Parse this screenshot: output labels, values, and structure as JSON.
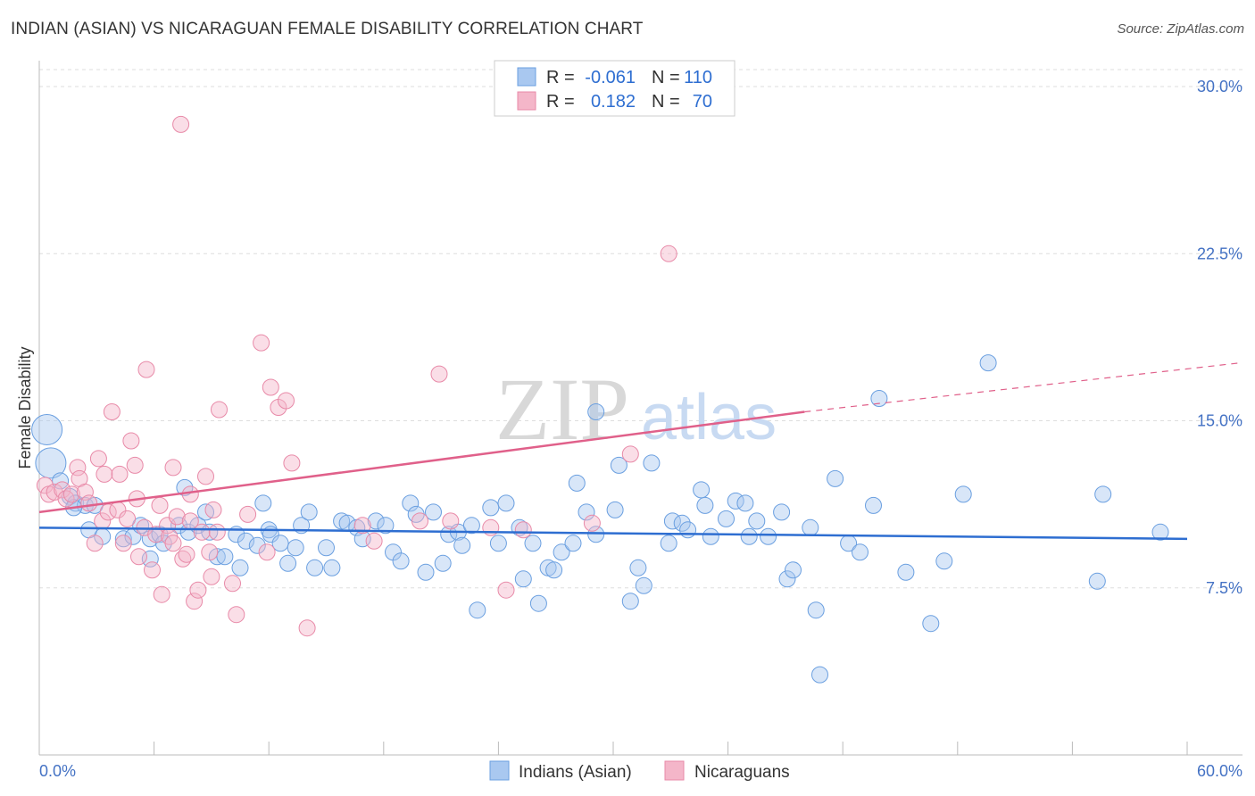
{
  "chart_data": {
    "type": "scatter",
    "title": "INDIAN (ASIAN) VS NICARAGUAN FEMALE DISABILITY CORRELATION CHART",
    "source": "Source: ZipAtlas.com",
    "xlabel": "",
    "ylabel": "Female Disability",
    "xlim": [
      0,
      60
    ],
    "ylim": [
      0,
      31.5
    ],
    "x_tick_labels": [
      "0.0%",
      "60.0%"
    ],
    "y_ticks": [
      7.5,
      15.0,
      22.5,
      30.0
    ],
    "y_tick_labels": [
      "7.5%",
      "15.0%",
      "22.5%",
      "30.0%"
    ],
    "grid": true,
    "watermark": {
      "zip": "ZIP",
      "atlas": "atlas"
    },
    "legend": {
      "r_label": "R =",
      "n_label": "N =",
      "entries": [
        {
          "r": "-0.061",
          "n": "110"
        },
        {
          "r": "0.182",
          "n": "70"
        }
      ]
    },
    "series": [
      {
        "name": "Indians (Asian)",
        "color": "#6a9fe0",
        "fill": "#a9c8f0",
        "line_color": "#2e6ed1",
        "trend": {
          "x0": 0,
          "y0": 10.2,
          "x1": 60,
          "y1": 9.7
        },
        "points": [
          [
            0.4,
            14.6,
            1
          ],
          [
            0.6,
            13.1,
            1
          ],
          [
            1.1,
            12.3,
            0
          ],
          [
            1.6,
            11.6,
            0
          ],
          [
            1.9,
            11.3,
            0
          ],
          [
            2.4,
            11.2,
            0
          ],
          [
            2.9,
            11.2,
            0
          ],
          [
            1.8,
            11.1,
            0
          ],
          [
            2.6,
            10.1,
            0
          ],
          [
            3.3,
            9.8,
            0
          ],
          [
            4.4,
            9.7,
            0
          ],
          [
            4.9,
            9.8,
            0
          ],
          [
            5.3,
            10.3,
            0
          ],
          [
            5.8,
            9.7,
            0
          ],
          [
            5.8,
            8.8,
            0
          ],
          [
            6.3,
            9.9,
            0
          ],
          [
            6.5,
            9.5,
            0
          ],
          [
            7.3,
            10.3,
            0
          ],
          [
            7.6,
            12.0,
            0
          ],
          [
            7.8,
            10.0,
            0
          ],
          [
            8.3,
            10.3,
            0
          ],
          [
            8.7,
            10.9,
            0
          ],
          [
            8.9,
            10.0,
            0
          ],
          [
            9.3,
            8.9,
            0
          ],
          [
            9.7,
            8.9,
            0
          ],
          [
            10.3,
            9.9,
            0
          ],
          [
            10.5,
            8.4,
            0
          ],
          [
            10.8,
            9.6,
            0
          ],
          [
            11.4,
            9.4,
            0
          ],
          [
            11.7,
            11.3,
            0
          ],
          [
            12.0,
            10.1,
            0
          ],
          [
            12.1,
            9.9,
            0
          ],
          [
            12.6,
            9.5,
            0
          ],
          [
            13.0,
            8.6,
            0
          ],
          [
            13.4,
            9.3,
            0
          ],
          [
            13.7,
            10.3,
            0
          ],
          [
            14.1,
            10.9,
            0
          ],
          [
            14.4,
            8.4,
            0
          ],
          [
            15.0,
            9.3,
            0
          ],
          [
            15.3,
            8.4,
            0
          ],
          [
            15.8,
            10.5,
            0
          ],
          [
            16.1,
            10.4,
            0
          ],
          [
            16.6,
            10.2,
            0
          ],
          [
            16.9,
            9.7,
            0
          ],
          [
            17.6,
            10.5,
            0
          ],
          [
            18.1,
            10.3,
            0
          ],
          [
            18.5,
            9.1,
            0
          ],
          [
            18.9,
            8.7,
            0
          ],
          [
            19.4,
            11.3,
            0
          ],
          [
            19.7,
            10.8,
            0
          ],
          [
            20.2,
            8.2,
            0
          ],
          [
            20.6,
            10.9,
            0
          ],
          [
            21.1,
            8.6,
            0
          ],
          [
            21.4,
            9.9,
            0
          ],
          [
            21.9,
            10.0,
            0
          ],
          [
            22.1,
            9.4,
            0
          ],
          [
            22.6,
            10.3,
            0
          ],
          [
            22.9,
            6.5,
            0
          ],
          [
            23.6,
            11.1,
            0
          ],
          [
            24.0,
            9.5,
            0
          ],
          [
            24.4,
            11.3,
            0
          ],
          [
            25.1,
            10.2,
            0
          ],
          [
            25.3,
            7.9,
            0
          ],
          [
            25.8,
            9.5,
            0
          ],
          [
            26.1,
            6.8,
            0
          ],
          [
            26.6,
            8.4,
            0
          ],
          [
            26.9,
            8.3,
            0
          ],
          [
            27.3,
            9.1,
            0
          ],
          [
            27.9,
            9.5,
            0
          ],
          [
            28.1,
            12.2,
            0
          ],
          [
            28.6,
            10.9,
            0
          ],
          [
            29.1,
            9.9,
            0
          ],
          [
            29.1,
            15.4,
            0
          ],
          [
            30.1,
            11.0,
            0
          ],
          [
            30.3,
            13.0,
            0
          ],
          [
            30.9,
            6.9,
            0
          ],
          [
            31.3,
            8.4,
            0
          ],
          [
            31.6,
            7.6,
            0
          ],
          [
            32.0,
            13.1,
            0
          ],
          [
            32.9,
            9.5,
            0
          ],
          [
            33.1,
            10.5,
            0
          ],
          [
            33.6,
            10.4,
            0
          ],
          [
            33.9,
            10.1,
            0
          ],
          [
            34.6,
            11.9,
            0
          ],
          [
            34.8,
            11.2,
            0
          ],
          [
            35.1,
            9.8,
            0
          ],
          [
            35.9,
            10.6,
            0
          ],
          [
            36.4,
            11.4,
            0
          ],
          [
            36.9,
            11.3,
            0
          ],
          [
            37.1,
            9.8,
            0
          ],
          [
            37.5,
            10.5,
            0
          ],
          [
            38.1,
            9.8,
            0
          ],
          [
            38.8,
            10.9,
            0
          ],
          [
            39.1,
            7.9,
            0
          ],
          [
            39.4,
            8.3,
            0
          ],
          [
            40.3,
            10.2,
            0
          ],
          [
            40.6,
            6.5,
            0
          ],
          [
            40.8,
            3.6,
            0
          ],
          [
            41.6,
            12.4,
            0
          ],
          [
            42.3,
            9.5,
            0
          ],
          [
            42.9,
            9.1,
            0
          ],
          [
            43.6,
            11.2,
            0
          ],
          [
            43.9,
            16.0,
            0
          ],
          [
            45.3,
            8.2,
            0
          ],
          [
            46.6,
            5.9,
            0
          ],
          [
            47.3,
            8.7,
            0
          ],
          [
            48.3,
            11.7,
            0
          ],
          [
            49.6,
            17.6,
            0
          ],
          [
            55.3,
            7.8,
            0
          ],
          [
            55.6,
            11.7,
            0
          ],
          [
            58.6,
            10.0,
            0
          ]
        ]
      },
      {
        "name": "Nicaraguans",
        "color": "#e88aa8",
        "fill": "#f4b6c9",
        "line_color": "#e0608a",
        "trend": {
          "x0": 0,
          "y0": 10.9,
          "x1": 40,
          "y1": 15.4,
          "dash_x1": 60,
          "dash_y1": 17.6
        },
        "points": [
          [
            0.3,
            12.1,
            0
          ],
          [
            0.5,
            11.7,
            0
          ],
          [
            0.8,
            11.8,
            0
          ],
          [
            1.2,
            11.9,
            0
          ],
          [
            1.4,
            11.5,
            0
          ],
          [
            1.7,
            11.7,
            0
          ],
          [
            2.0,
            12.9,
            0
          ],
          [
            2.1,
            12.4,
            0
          ],
          [
            2.4,
            11.8,
            0
          ],
          [
            2.6,
            11.3,
            0
          ],
          [
            2.9,
            9.5,
            0
          ],
          [
            3.1,
            13.3,
            0
          ],
          [
            3.3,
            10.5,
            0
          ],
          [
            3.4,
            12.6,
            0
          ],
          [
            3.6,
            10.9,
            0
          ],
          [
            3.8,
            15.4,
            0
          ],
          [
            4.1,
            11.0,
            0
          ],
          [
            4.2,
            12.6,
            0
          ],
          [
            4.4,
            9.5,
            0
          ],
          [
            4.6,
            10.6,
            0
          ],
          [
            4.8,
            14.1,
            0
          ],
          [
            5.0,
            13.0,
            0
          ],
          [
            5.1,
            11.5,
            0
          ],
          [
            5.2,
            8.9,
            0
          ],
          [
            5.5,
            10.2,
            0
          ],
          [
            5.6,
            17.3,
            0
          ],
          [
            5.9,
            8.3,
            0
          ],
          [
            6.1,
            9.9,
            0
          ],
          [
            6.3,
            11.2,
            0
          ],
          [
            6.4,
            7.2,
            0
          ],
          [
            6.7,
            10.3,
            0
          ],
          [
            6.8,
            9.8,
            0
          ],
          [
            7.0,
            12.9,
            0
          ],
          [
            7.0,
            9.5,
            0
          ],
          [
            7.2,
            10.7,
            0
          ],
          [
            7.4,
            28.3,
            0
          ],
          [
            7.5,
            8.8,
            0
          ],
          [
            7.7,
            9.0,
            0
          ],
          [
            7.9,
            11.7,
            0
          ],
          [
            7.9,
            10.5,
            0
          ],
          [
            8.1,
            6.9,
            0
          ],
          [
            8.3,
            7.4,
            0
          ],
          [
            8.5,
            10.0,
            0
          ],
          [
            8.7,
            12.5,
            0
          ],
          [
            8.9,
            9.1,
            0
          ],
          [
            9.0,
            8.0,
            0
          ],
          [
            9.1,
            11.0,
            0
          ],
          [
            9.3,
            10.0,
            0
          ],
          [
            9.4,
            15.5,
            0
          ],
          [
            10.1,
            7.7,
            0
          ],
          [
            10.3,
            6.3,
            0
          ],
          [
            10.9,
            10.8,
            0
          ],
          [
            11.6,
            18.5,
            0
          ],
          [
            11.9,
            9.1,
            0
          ],
          [
            12.1,
            16.5,
            0
          ],
          [
            12.5,
            15.6,
            0
          ],
          [
            12.9,
            15.9,
            0
          ],
          [
            13.2,
            13.1,
            0
          ],
          [
            14.0,
            5.7,
            0
          ],
          [
            16.9,
            10.3,
            0
          ],
          [
            17.5,
            9.6,
            0
          ],
          [
            19.9,
            10.5,
            0
          ],
          [
            20.9,
            17.1,
            0
          ],
          [
            21.5,
            10.5,
            0
          ],
          [
            23.6,
            10.2,
            0
          ],
          [
            24.4,
            7.4,
            0
          ],
          [
            25.3,
            10.1,
            0
          ],
          [
            28.9,
            10.4,
            0
          ],
          [
            30.9,
            13.5,
            0
          ],
          [
            32.9,
            22.5,
            0
          ]
        ]
      }
    ]
  }
}
